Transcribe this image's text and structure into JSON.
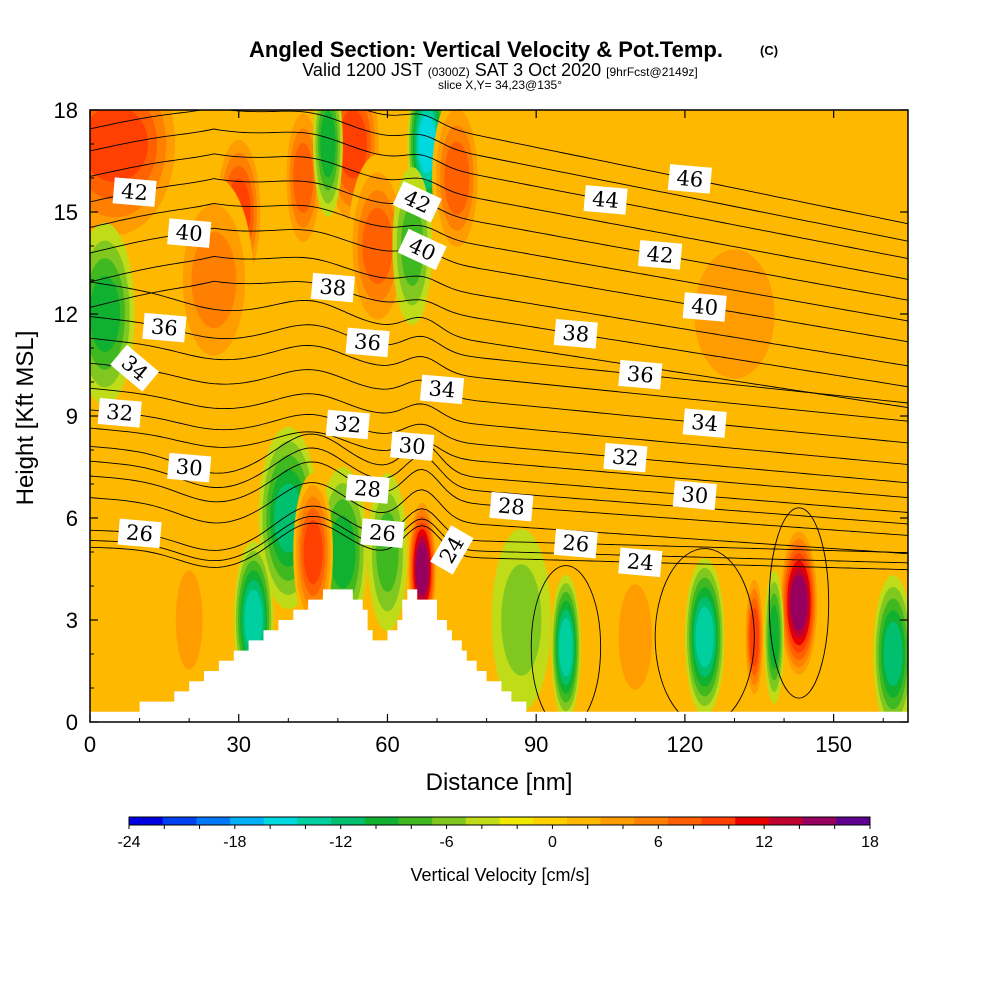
{
  "chart_data": {
    "type": "heatmap",
    "title": "Angled Section: Vertical Velocity & Pot.Temp.",
    "title_unit": "(C)",
    "subtitle_parts": [
      "Valid 1200 JST",
      "(0300Z)",
      "SAT 3 Oct 2020",
      "[9hrFcst@2149z]"
    ],
    "slice_text": "slice X,Y= 34,23@135°",
    "xlabel": "Distance [nm]",
    "ylabel": "Height [Kft MSL]",
    "xlim": [
      0,
      165
    ],
    "ylim": [
      0,
      18
    ],
    "x_ticks": [
      "0",
      "30",
      "60",
      "90",
      "120",
      "150"
    ],
    "y_ticks": [
      "0",
      "3",
      "6",
      "9",
      "12",
      "15",
      "18"
    ],
    "colorbar": {
      "label": "Vertical Velocity [cm/s]",
      "min": -24,
      "max": 18,
      "step": 2,
      "tick_labels": [
        "-24",
        "-18",
        "-12",
        "-6",
        "0",
        "6",
        "12",
        "18"
      ],
      "colors": [
        "#0000e0",
        "#0040f0",
        "#0078f8",
        "#00b0f8",
        "#00d8e0",
        "#00d0a0",
        "#00c070",
        "#10b030",
        "#40b820",
        "#80c820",
        "#c0dc18",
        "#f0e800",
        "#ffd000",
        "#ffb800",
        "#ff9c00",
        "#ff8000",
        "#ff6000",
        "#ff4000",
        "#e80000",
        "#c00030",
        "#980060",
        "#600090"
      ]
    },
    "terrain": [
      [
        0,
        0.3
      ],
      [
        10,
        0.3
      ],
      [
        10,
        0.6
      ],
      [
        17,
        0.6
      ],
      [
        17,
        0.9
      ],
      [
        20,
        0.9
      ],
      [
        20,
        1.2
      ],
      [
        23,
        1.2
      ],
      [
        23,
        1.5
      ],
      [
        26,
        1.5
      ],
      [
        26,
        1.8
      ],
      [
        29,
        1.8
      ],
      [
        29,
        2.1
      ],
      [
        32,
        2.1
      ],
      [
        32,
        2.4
      ],
      [
        35,
        2.4
      ],
      [
        35,
        2.7
      ],
      [
        38,
        2.7
      ],
      [
        38,
        3.0
      ],
      [
        41,
        3.0
      ],
      [
        41,
        3.3
      ],
      [
        44,
        3.3
      ],
      [
        44,
        3.6
      ],
      [
        47,
        3.6
      ],
      [
        47,
        3.9
      ],
      [
        53,
        3.9
      ],
      [
        53,
        3.6
      ],
      [
        55,
        3.6
      ],
      [
        55,
        3.3
      ],
      [
        56,
        3.3
      ],
      [
        56,
        2.7
      ],
      [
        57,
        2.7
      ],
      [
        57,
        2.4
      ],
      [
        60,
        2.4
      ],
      [
        60,
        2.7
      ],
      [
        62,
        2.7
      ],
      [
        62,
        3.0
      ],
      [
        63,
        3.0
      ],
      [
        63,
        3.6
      ],
      [
        64,
        3.6
      ],
      [
        64,
        3.9
      ],
      [
        66,
        3.9
      ],
      [
        66,
        3.6
      ],
      [
        70,
        3.6
      ],
      [
        70,
        3.0
      ],
      [
        72,
        3.0
      ],
      [
        72,
        2.7
      ],
      [
        73,
        2.7
      ],
      [
        73,
        2.4
      ],
      [
        75,
        2.4
      ],
      [
        75,
        2.1
      ],
      [
        76,
        2.1
      ],
      [
        76,
        1.8
      ],
      [
        78,
        1.8
      ],
      [
        78,
        1.5
      ],
      [
        80,
        1.5
      ],
      [
        80,
        1.2
      ],
      [
        83,
        1.2
      ],
      [
        83,
        0.9
      ],
      [
        85,
        0.9
      ],
      [
        85,
        0.6
      ],
      [
        88,
        0.6
      ],
      [
        88,
        0.3
      ],
      [
        165,
        0.3
      ]
    ],
    "cells": [
      {
        "x": 5,
        "y": 17,
        "w": 14,
        "z": 10
      },
      {
        "x": 3,
        "y": 12,
        "w": 6,
        "z": -9
      },
      {
        "x": 30,
        "y": 15,
        "w": 5,
        "z": 10
      },
      {
        "x": 43,
        "y": 16,
        "w": 4,
        "z": 9
      },
      {
        "x": 53,
        "y": 17,
        "w": 6,
        "z": 10
      },
      {
        "x": 58,
        "y": 14,
        "w": 6,
        "z": 9
      },
      {
        "x": 48,
        "y": 17,
        "w": 3,
        "z": -8
      },
      {
        "x": 68,
        "y": 17,
        "w": 4,
        "z": -14
      },
      {
        "x": 65,
        "y": 14,
        "w": 4,
        "z": -7
      },
      {
        "x": 74,
        "y": 16,
        "w": 5,
        "z": 9
      },
      {
        "x": 25,
        "y": 13,
        "w": 8,
        "z": 6
      },
      {
        "x": 40,
        "y": 6,
        "w": 6,
        "z": -11
      },
      {
        "x": 51,
        "y": 5,
        "w": 5,
        "z": -9
      },
      {
        "x": 33,
        "y": 3,
        "w": 4,
        "z": -13
      },
      {
        "x": 45,
        "y": 5,
        "w": 4,
        "z": 11
      },
      {
        "x": 67,
        "y": 4.5,
        "w": 3,
        "z": 17
      },
      {
        "x": 60,
        "y": 5,
        "w": 4,
        "z": -6
      },
      {
        "x": 96,
        "y": 2.2,
        "w": 3,
        "z": -13
      },
      {
        "x": 124,
        "y": 2.5,
        "w": 4,
        "z": -12
      },
      {
        "x": 134,
        "y": 2.5,
        "w": 2,
        "z": 10
      },
      {
        "x": 143,
        "y": 3.5,
        "w": 4,
        "z": 17
      },
      {
        "x": 162,
        "y": 2,
        "w": 4,
        "z": -10
      },
      {
        "x": 138,
        "y": 2.5,
        "w": 2,
        "z": -9
      },
      {
        "x": 110,
        "y": 2.5,
        "w": 5,
        "z": 4
      },
      {
        "x": 87,
        "y": 3,
        "w": 6,
        "z": -5
      },
      {
        "x": 20,
        "y": 3,
        "w": 4,
        "z": 5
      },
      {
        "x": 130,
        "y": 12,
        "w": 12,
        "z": 4
      }
    ],
    "isentropes": [
      {
        "theta": 24,
        "base": 4.9,
        "labels": [
          {
            "x": 111,
            "text": "24"
          },
          {
            "x": 73,
            "text": "24",
            "angle": -60
          }
        ]
      },
      {
        "theta": 25,
        "base": 5.1
      },
      {
        "theta": 26,
        "base": 5.4,
        "labels": [
          {
            "x": 10,
            "text": "26"
          },
          {
            "x": 59,
            "text": "26"
          },
          {
            "x": 98,
            "text": "26"
          }
        ]
      },
      {
        "theta": 27,
        "base": 6.0
      },
      {
        "theta": 28,
        "base": 6.6,
        "labels": [
          {
            "x": 56,
            "text": "28"
          },
          {
            "x": 85,
            "text": "28"
          }
        ]
      },
      {
        "theta": 29,
        "base": 7.0
      },
      {
        "theta": 30,
        "base": 7.4,
        "labels": [
          {
            "x": 20,
            "text": "30"
          },
          {
            "x": 65,
            "text": "30"
          },
          {
            "x": 122,
            "text": "30"
          }
        ]
      },
      {
        "theta": 31,
        "base": 7.9
      },
      {
        "theta": 32,
        "base": 8.4,
        "labels": [
          {
            "x": 6,
            "text": "32"
          },
          {
            "x": 52,
            "text": "32"
          },
          {
            "x": 108,
            "text": "32"
          }
        ]
      },
      {
        "theta": 33,
        "base": 9.0
      },
      {
        "theta": 34,
        "base": 9.7,
        "labels": [
          {
            "x": 9,
            "text": "34",
            "angle": 40
          },
          {
            "x": 71,
            "text": "34"
          },
          {
            "x": 124,
            "text": "34"
          }
        ]
      },
      {
        "theta": 35,
        "base": 10.4
      },
      {
        "theta": 36,
        "base": 11.0,
        "labels": [
          {
            "x": 15,
            "text": "36"
          },
          {
            "x": 56,
            "text": "36"
          },
          {
            "x": 111,
            "text": "36"
          }
        ]
      },
      {
        "theta": 37,
        "base": 11.6
      },
      {
        "theta": 38,
        "base": 12.3,
        "labels": [
          {
            "x": 49,
            "text": "38"
          },
          {
            "x": 98,
            "text": "38"
          }
        ]
      },
      {
        "theta": 39,
        "base": 13.0
      },
      {
        "theta": 40,
        "base": 13.8,
        "labels": [
          {
            "x": 20,
            "text": "40"
          },
          {
            "x": 67,
            "text": "40",
            "angle": 25
          },
          {
            "x": 124,
            "text": "40"
          }
        ]
      },
      {
        "theta": 41,
        "base": 14.5
      },
      {
        "theta": 42,
        "base": 15.2,
        "labels": [
          {
            "x": 9,
            "text": "42"
          },
          {
            "x": 66,
            "text": "42",
            "angle": 25
          },
          {
            "x": 115,
            "text": "42"
          }
        ]
      },
      {
        "theta": 43,
        "base": 15.9
      },
      {
        "theta": 44,
        "base": 16.6,
        "labels": [
          {
            "x": 104,
            "text": "44"
          }
        ]
      },
      {
        "theta": 45,
        "base": 17.2
      },
      {
        "theta": 46,
        "base": 17.8,
        "labels": [
          {
            "x": 121,
            "text": "46"
          }
        ]
      }
    ]
  }
}
